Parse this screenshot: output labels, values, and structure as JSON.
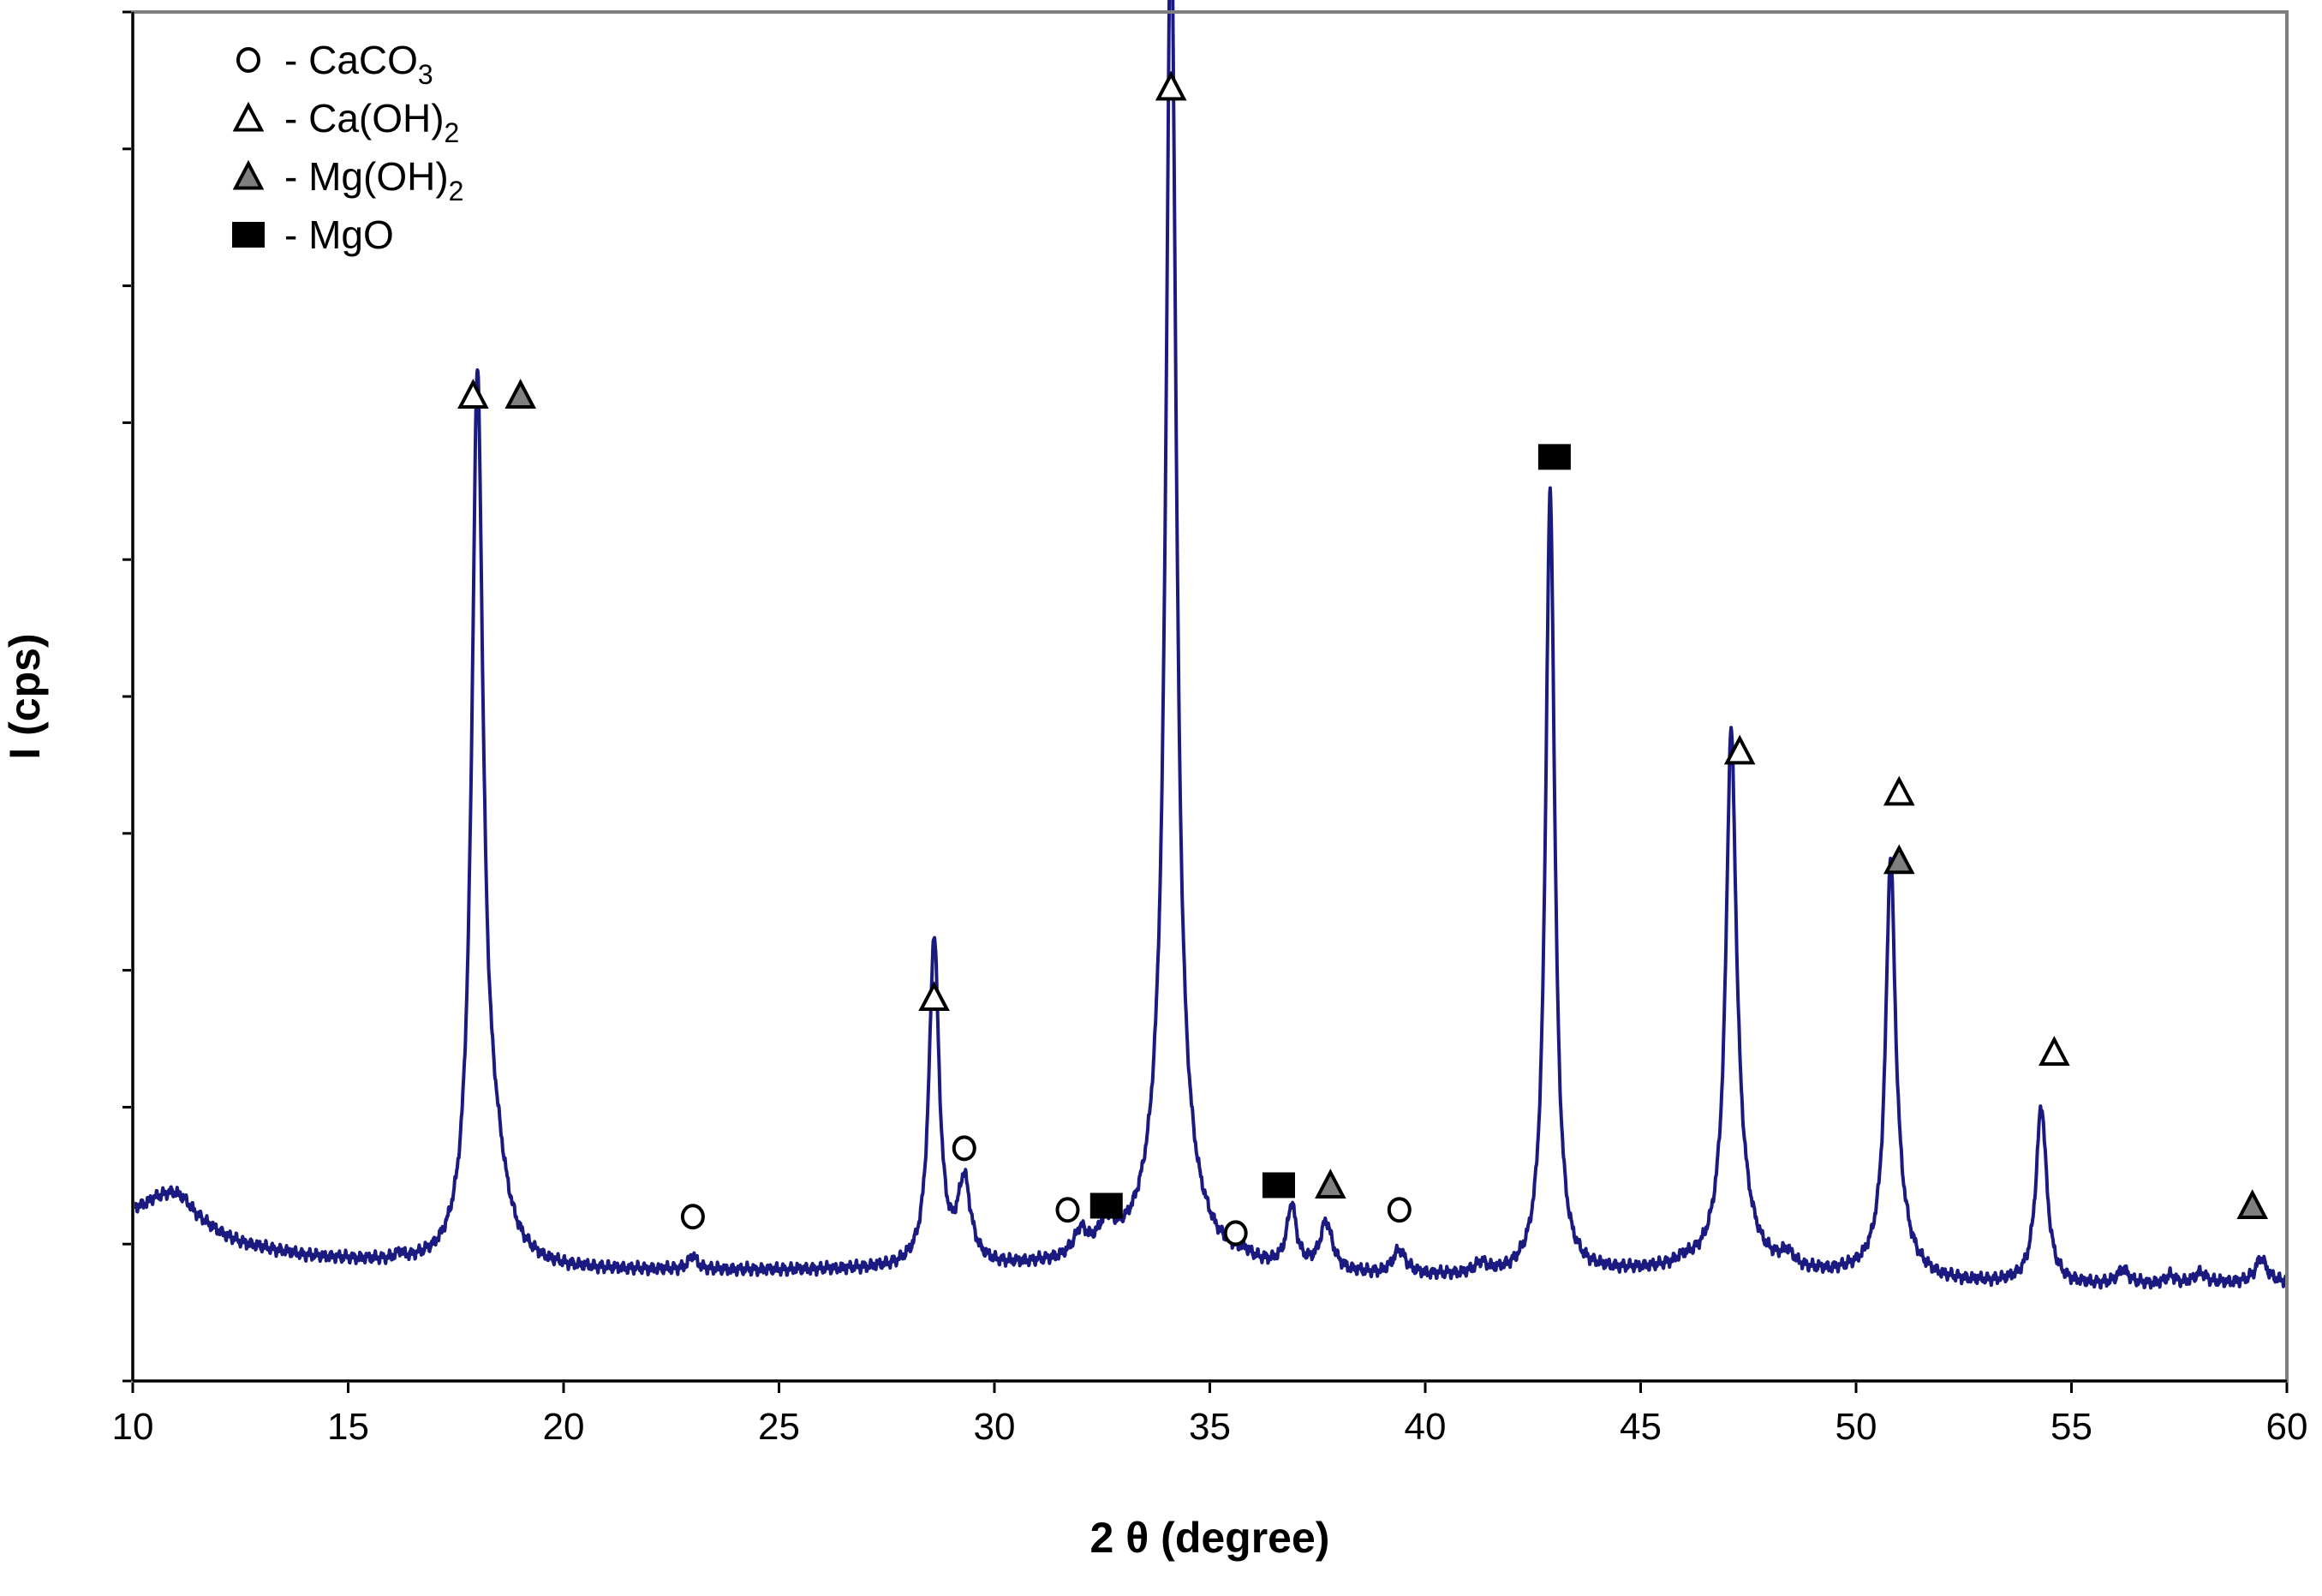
{
  "chart_data": {
    "type": "line",
    "title": "",
    "xlabel": "2 θ (degree)",
    "ylabel": "I (cps)",
    "xlim": [
      10,
      60
    ],
    "ylim": [
      0,
      100
    ],
    "x_ticks": [
      10,
      15,
      20,
      25,
      30,
      35,
      40,
      45,
      50,
      55,
      60
    ],
    "y_ticks": [
      0,
      10,
      20,
      30,
      40,
      50,
      60,
      70,
      80,
      90,
      100
    ],
    "y_tick_labels_shown": false,
    "legend_position": "top-left",
    "series_color": "#1a1a80",
    "legend": [
      {
        "marker": "circle-open",
        "prefix": " - CaCO",
        "sub": "3",
        "suffix": ""
      },
      {
        "marker": "triangle-open",
        "prefix": " - Ca(OH)",
        "sub": "2",
        "suffix": ""
      },
      {
        "marker": "triangle-gray",
        "prefix": " - Mg(OH)",
        "sub": "2",
        "suffix": ""
      },
      {
        "marker": "square-filled",
        "prefix": " - MgO",
        "sub": "",
        "suffix": ""
      }
    ],
    "peaks": [
      {
        "x": 11.0,
        "y": 2.3,
        "w": 0.6
      },
      {
        "x": 16.2,
        "y": 0.4,
        "w": 0.1
      },
      {
        "x": 18.0,
        "y": 63.0,
        "w": 0.16
      },
      {
        "x": 18.4,
        "y": 6.0,
        "w": 0.35
      },
      {
        "x": 23.0,
        "y": 1.0,
        "w": 0.12
      },
      {
        "x": 28.6,
        "y": 24.0,
        "w": 0.14
      },
      {
        "x": 29.3,
        "y": 6.0,
        "w": 0.18
      },
      {
        "x": 32.0,
        "y": 1.8,
        "w": 0.18
      },
      {
        "x": 32.6,
        "y": 2.0,
        "w": 0.22
      },
      {
        "x": 34.1,
        "y": 92.0,
        "w": 0.14
      },
      {
        "x": 34.1,
        "y": 8.0,
        "w": 0.55
      },
      {
        "x": 35.8,
        "y": 0.4,
        "w": 0.15
      },
      {
        "x": 36.9,
        "y": 4.5,
        "w": 0.13
      },
      {
        "x": 37.7,
        "y": 3.5,
        "w": 0.17
      },
      {
        "x": 39.4,
        "y": 1.8,
        "w": 0.18
      },
      {
        "x": 41.3,
        "y": 0.8,
        "w": 0.15
      },
      {
        "x": 42.9,
        "y": 57.0,
        "w": 0.13
      },
      {
        "x": 46.0,
        "y": 0.4,
        "w": 0.3
      },
      {
        "x": 47.1,
        "y": 35.0,
        "w": 0.14
      },
      {
        "x": 47.2,
        "y": 5.0,
        "w": 0.4
      },
      {
        "x": 48.4,
        "y": 1.0,
        "w": 0.2
      },
      {
        "x": 50.8,
        "y": 27.0,
        "w": 0.13
      },
      {
        "x": 50.9,
        "y": 4.0,
        "w": 0.35
      },
      {
        "x": 54.3,
        "y": 13.0,
        "w": 0.15
      },
      {
        "x": 56.2,
        "y": 1.1,
        "w": 0.15
      },
      {
        "x": 57.3,
        "y": 0.6,
        "w": 0.12
      },
      {
        "x": 58.0,
        "y": 0.8,
        "w": 0.15
      },
      {
        "x": 59.4,
        "y": 1.8,
        "w": 0.15
      }
    ],
    "baseline": [
      {
        "x": 10.0,
        "y": 12.0
      },
      {
        "x": 10.5,
        "y": 12.0
      },
      {
        "x": 11.5,
        "y": 10.8
      },
      {
        "x": 12.5,
        "y": 9.8
      },
      {
        "x": 14.0,
        "y": 9.0
      },
      {
        "x": 15.5,
        "y": 8.6
      },
      {
        "x": 17.0,
        "y": 8.2
      },
      {
        "x": 20.0,
        "y": 8.0
      },
      {
        "x": 25.0,
        "y": 8.0
      },
      {
        "x": 30.0,
        "y": 8.1
      },
      {
        "x": 33.0,
        "y": 8.4
      },
      {
        "x": 36.0,
        "y": 7.9
      },
      {
        "x": 39.0,
        "y": 7.5
      },
      {
        "x": 42.0,
        "y": 7.5
      },
      {
        "x": 45.0,
        "y": 7.8
      },
      {
        "x": 48.0,
        "y": 7.6
      },
      {
        "x": 50.0,
        "y": 7.5
      },
      {
        "x": 52.0,
        "y": 7.1
      },
      {
        "x": 55.0,
        "y": 6.9
      },
      {
        "x": 57.0,
        "y": 7.0
      },
      {
        "x": 60.0,
        "y": 7.2
      }
    ],
    "annotations": [
      {
        "type": "triangle-open",
        "x": 17.9,
        "y": 72.0
      },
      {
        "type": "triangle-gray",
        "x": 19.0,
        "y": 72.0
      },
      {
        "type": "circle-open",
        "x": 23.0,
        "y": 12.0
      },
      {
        "type": "triangle-open",
        "x": 28.6,
        "y": 28.0
      },
      {
        "type": "circle-open",
        "x": 29.3,
        "y": 17.0
      },
      {
        "type": "circle-open",
        "x": 31.7,
        "y": 12.5
      },
      {
        "type": "square-filled",
        "x": 32.6,
        "y": 12.8
      },
      {
        "type": "triangle-open",
        "x": 34.1,
        "y": 94.5
      },
      {
        "type": "circle-open",
        "x": 35.6,
        "y": 10.8
      },
      {
        "type": "square-filled",
        "x": 36.6,
        "y": 14.3
      },
      {
        "type": "triangle-gray",
        "x": 37.8,
        "y": 14.3
      },
      {
        "type": "circle-open",
        "x": 39.4,
        "y": 12.5
      },
      {
        "type": "square-filled",
        "x": 43.0,
        "y": 67.5
      },
      {
        "type": "triangle-open",
        "x": 47.3,
        "y": 46.0
      },
      {
        "type": "triangle-open",
        "x": 51.0,
        "y": 43.0
      },
      {
        "type": "triangle-gray",
        "x": 51.0,
        "y": 38.0
      },
      {
        "type": "triangle-open",
        "x": 54.6,
        "y": 24.0
      },
      {
        "type": "triangle-gray",
        "x": 59.2,
        "y": 12.8
      }
    ]
  }
}
